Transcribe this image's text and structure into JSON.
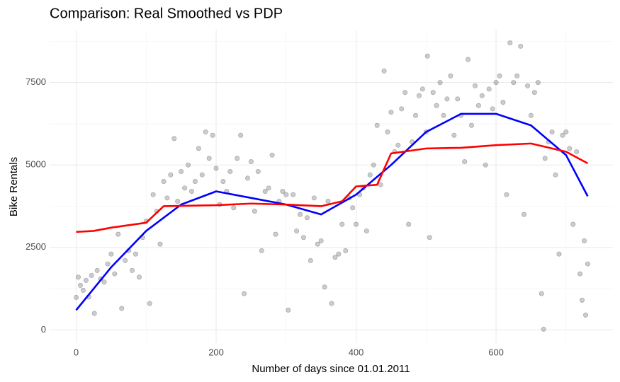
{
  "chart_data": {
    "type": "scatter",
    "title": "Comparison: Real Smoothed vs PDP",
    "x_label": "Number of days since 01.01.2011",
    "y_label": "Bike Rentals",
    "xlim": [
      -38,
      767
    ],
    "ylim": [
      -400,
      9100
    ],
    "xticks": [
      0,
      200,
      400,
      600
    ],
    "yticks": [
      0,
      2500,
      5000,
      7500
    ],
    "xminor": [
      100,
      300,
      500,
      700
    ],
    "yminor": [
      1250,
      3750,
      6250,
      8750
    ],
    "grid": true,
    "points": {
      "color": "#000000",
      "x": [
        0,
        3,
        6,
        10,
        14,
        18,
        22,
        26,
        30,
        35,
        40,
        45,
        50,
        55,
        60,
        65,
        70,
        75,
        80,
        85,
        90,
        95,
        100,
        105,
        110,
        115,
        120,
        125,
        130,
        135,
        140,
        145,
        150,
        155,
        160,
        165,
        170,
        175,
        180,
        185,
        190,
        195,
        200,
        205,
        210,
        215,
        220,
        225,
        230,
        235,
        240,
        245,
        250,
        255,
        260,
        265,
        270,
        275,
        280,
        285,
        290,
        295,
        300,
        303,
        310,
        315,
        320,
        325,
        330,
        335,
        340,
        345,
        350,
        355,
        360,
        365,
        370,
        375,
        380,
        385,
        390,
        395,
        400,
        405,
        410,
        415,
        420,
        425,
        430,
        435,
        440,
        445,
        450,
        455,
        460,
        465,
        470,
        475,
        480,
        485,
        490,
        495,
        500,
        502,
        505,
        510,
        515,
        520,
        525,
        530,
        535,
        540,
        545,
        550,
        555,
        560,
        565,
        570,
        575,
        580,
        585,
        590,
        595,
        600,
        605,
        610,
        615,
        620,
        625,
        630,
        635,
        640,
        645,
        650,
        655,
        660,
        665,
        668,
        670,
        675,
        680,
        685,
        690,
        695,
        700,
        705,
        710,
        715,
        720,
        723,
        726,
        728,
        731
      ],
      "values": [
        985,
        1600,
        1350,
        1200,
        1500,
        1000,
        1650,
        500,
        1800,
        1550,
        1450,
        2000,
        2300,
        1700,
        2900,
        650,
        2100,
        2400,
        1800,
        2300,
        1600,
        2800,
        3300,
        800,
        4100,
        3600,
        2600,
        4500,
        4000,
        4700,
        5800,
        3900,
        4800,
        4300,
        5000,
        4200,
        4500,
        5500,
        4700,
        6000,
        5200,
        5900,
        4900,
        3800,
        4500,
        4200,
        4800,
        3700,
        5200,
        5900,
        1100,
        4600,
        5100,
        3600,
        4800,
        2400,
        4200,
        4300,
        5300,
        2900,
        3900,
        4200,
        4100,
        600,
        4100,
        3000,
        3500,
        2800,
        3400,
        2100,
        4000,
        2600,
        2700,
        1300,
        3900,
        800,
        2200,
        2300,
        3200,
        2400,
        4000,
        3700,
        3200,
        4100,
        4300,
        3000,
        4700,
        5000,
        6200,
        4400,
        7850,
        6000,
        6600,
        5400,
        5600,
        6700,
        7200,
        3200,
        5700,
        6500,
        7100,
        7300,
        6000,
        8300,
        2800,
        7200,
        6800,
        7500,
        6500,
        7000,
        7700,
        5900,
        7000,
        6500,
        5100,
        8200,
        6200,
        7400,
        6800,
        7100,
        5000,
        7300,
        6700,
        7500,
        7700,
        6900,
        4100,
        8700,
        7500,
        7700,
        8600,
        3500,
        7400,
        6500,
        7200,
        7500,
        1100,
        20,
        5200,
        5700,
        6000,
        4700,
        2300,
        5900,
        6000,
        5500,
        3200,
        5400,
        1700,
        900,
        2700,
        450,
        2000
      ]
    },
    "lines": [
      {
        "color": "#0000ff",
        "x": [
          0,
          50,
          100,
          150,
          200,
          250,
          300,
          350,
          400,
          450,
          500,
          550,
          600,
          650,
          700,
          731
        ],
        "values": [
          600,
          1900,
          3000,
          3800,
          4200,
          4000,
          3800,
          3500,
          4100,
          5000,
          6000,
          6550,
          6550,
          6200,
          5300,
          4050
        ]
      },
      {
        "color": "#ff0000",
        "x": [
          0,
          25,
          50,
          100,
          125,
          200,
          250,
          300,
          350,
          380,
          400,
          430,
          450,
          500,
          550,
          600,
          650,
          700,
          731
        ],
        "values": [
          2970,
          3000,
          3100,
          3250,
          3750,
          3780,
          3830,
          3800,
          3750,
          3900,
          4350,
          4400,
          5350,
          5500,
          5520,
          5600,
          5650,
          5400,
          5050
        ]
      }
    ]
  }
}
